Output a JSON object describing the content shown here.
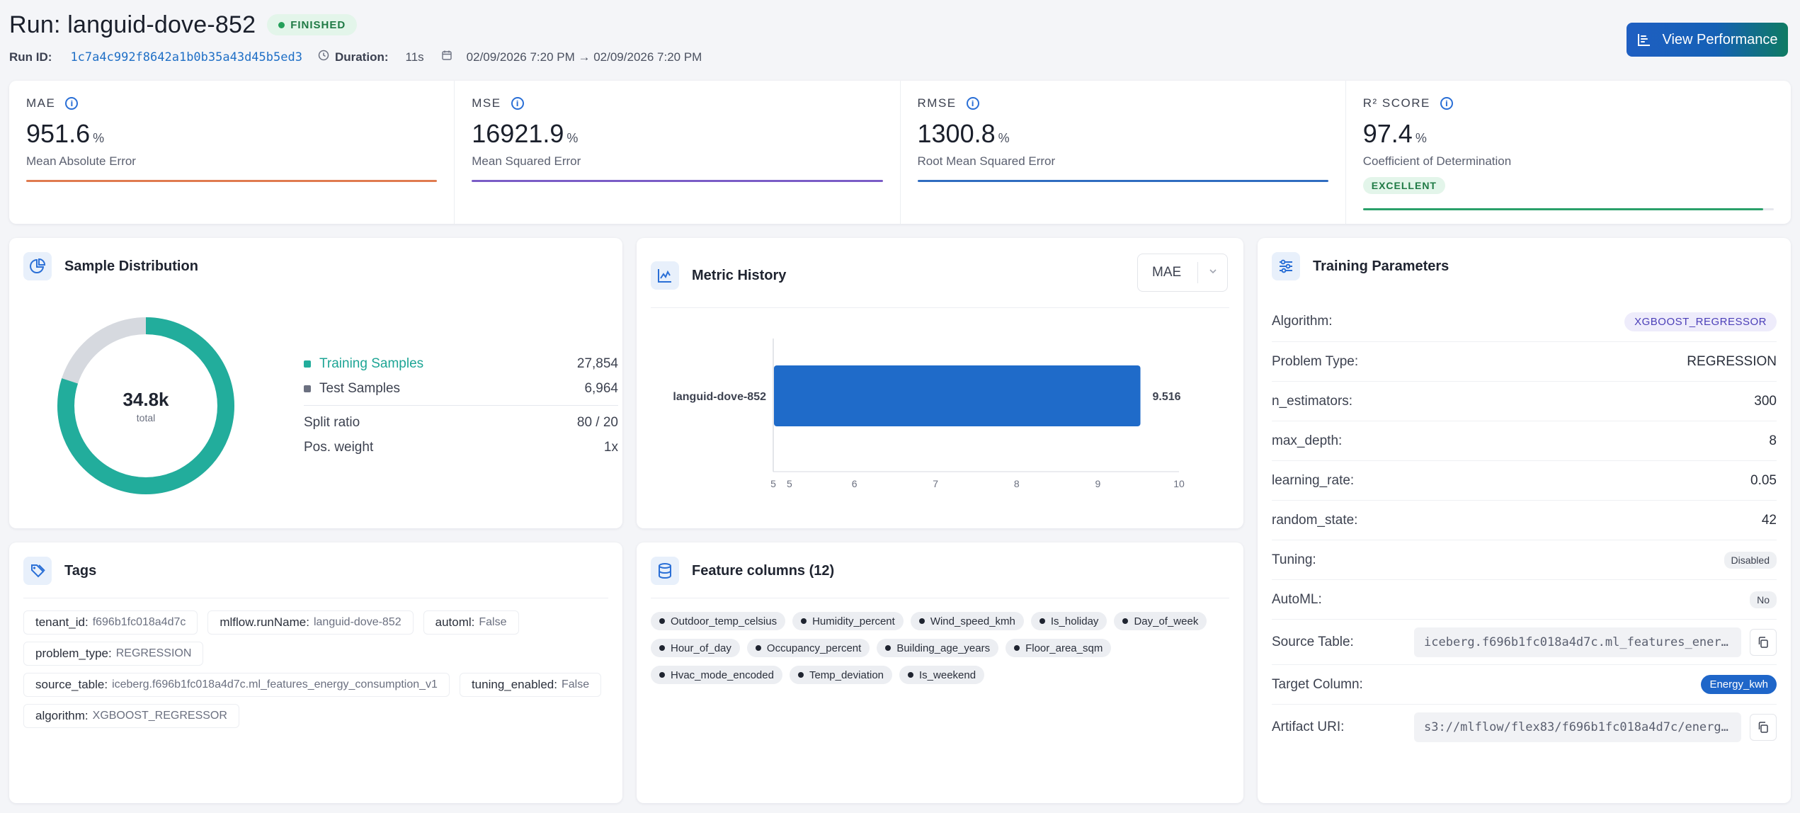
{
  "header": {
    "title": "Run: languid-dove-852",
    "status": "FINISHED",
    "run_id_label": "Run ID:",
    "run_id": "1c7a4c992f8642a1b0b35a43d45b5ed3",
    "duration_label": "Duration:",
    "duration": "11s",
    "date_range": "02/09/2026 7:20 PM → 02/09/2026 7:20 PM",
    "view_button": "View Performance"
  },
  "metrics": [
    {
      "label": "MAE",
      "value": "951.6",
      "unit": "%",
      "desc": "Mean Absolute Error",
      "color": "#e07b4f"
    },
    {
      "label": "MSE",
      "value": "16921.9",
      "unit": "%",
      "desc": "Mean Squared Error",
      "color": "#7a5cc6"
    },
    {
      "label": "RMSE",
      "value": "1300.8",
      "unit": "%",
      "desc": "Root Mean Squared Error",
      "color": "#2f6cc0"
    },
    {
      "label": "R² SCORE",
      "value": "97.4",
      "unit": "%",
      "desc": "Coefficient of Determination",
      "badge": "EXCELLENT",
      "progress": 0.974,
      "color": "#2aa06a"
    }
  ],
  "sample": {
    "title": "Sample Distribution",
    "total": "34.8k",
    "total_label": "total",
    "training_label": "Training Samples",
    "training_value": "27,854",
    "test_label": "Test Samples",
    "test_value": "6,964",
    "split_label": "Split ratio",
    "split_value": "80 / 20",
    "pos_label": "Pos. weight",
    "pos_value": "1x",
    "training_fraction": 0.8,
    "colors": {
      "training": "#22ad9c",
      "test": "#d6d9df"
    }
  },
  "history": {
    "title": "Metric History",
    "selected_metric": "MAE",
    "chart_data": {
      "type": "bar",
      "orientation": "horizontal",
      "categories": [
        "languid-dove-852"
      ],
      "values": [
        9.516
      ],
      "value_labels": [
        "9.516"
      ],
      "xlim": [
        5,
        10
      ],
      "xticks": [
        "5",
        "5",
        "6",
        "7",
        "8",
        "9",
        "10"
      ],
      "xtick_values": [
        5,
        5.2,
        6,
        7,
        8,
        9,
        10
      ],
      "color": "#1f6bc9"
    }
  },
  "params": {
    "title": "Training Parameters",
    "algorithm_label": "Algorithm:",
    "algorithm": "XGBOOST_REGRESSOR",
    "problem_type_label": "Problem Type:",
    "problem_type": "REGRESSION",
    "n_estimators_label": "n_estimators:",
    "n_estimators": "300",
    "max_depth_label": "max_depth:",
    "max_depth": "8",
    "learning_rate_label": "learning_rate:",
    "learning_rate": "0.05",
    "random_state_label": "random_state:",
    "random_state": "42",
    "tuning_label": "Tuning:",
    "tuning": "Disabled",
    "automl_label": "AutoML:",
    "automl": "No",
    "source_table_label": "Source Table:",
    "source_table": "iceberg.f696b1fc018a4d7c.ml_features_ener…",
    "target_column_label": "Target Column:",
    "target_column": "Energy_kwh",
    "artifact_uri_label": "Artifact URI:",
    "artifact_uri": "s3://mlflow/flex83/f696b1fc018a4d7c/energ…"
  },
  "tags": {
    "title": "Tags",
    "items": [
      {
        "key": "tenant_id:",
        "value": "f696b1fc018a4d7c"
      },
      {
        "key": "mlflow.runName:",
        "value": "languid-dove-852"
      },
      {
        "key": "automl:",
        "value": "False"
      },
      {
        "key": "problem_type:",
        "value": "REGRESSION"
      },
      {
        "key": "source_table:",
        "value": "iceberg.f696b1fc018a4d7c.ml_features_energy_consumption_v1"
      },
      {
        "key": "tuning_enabled:",
        "value": "False"
      },
      {
        "key": "algorithm:",
        "value": "XGBOOST_REGRESSOR"
      }
    ]
  },
  "features": {
    "title": "Feature columns (12)",
    "items": [
      "Outdoor_temp_celsius",
      "Humidity_percent",
      "Wind_speed_kmh",
      "Is_holiday",
      "Day_of_week",
      "Hour_of_day",
      "Occupancy_percent",
      "Building_age_years",
      "Floor_area_sqm",
      "Hvac_mode_encoded",
      "Temp_deviation",
      "Is_weekend"
    ]
  }
}
